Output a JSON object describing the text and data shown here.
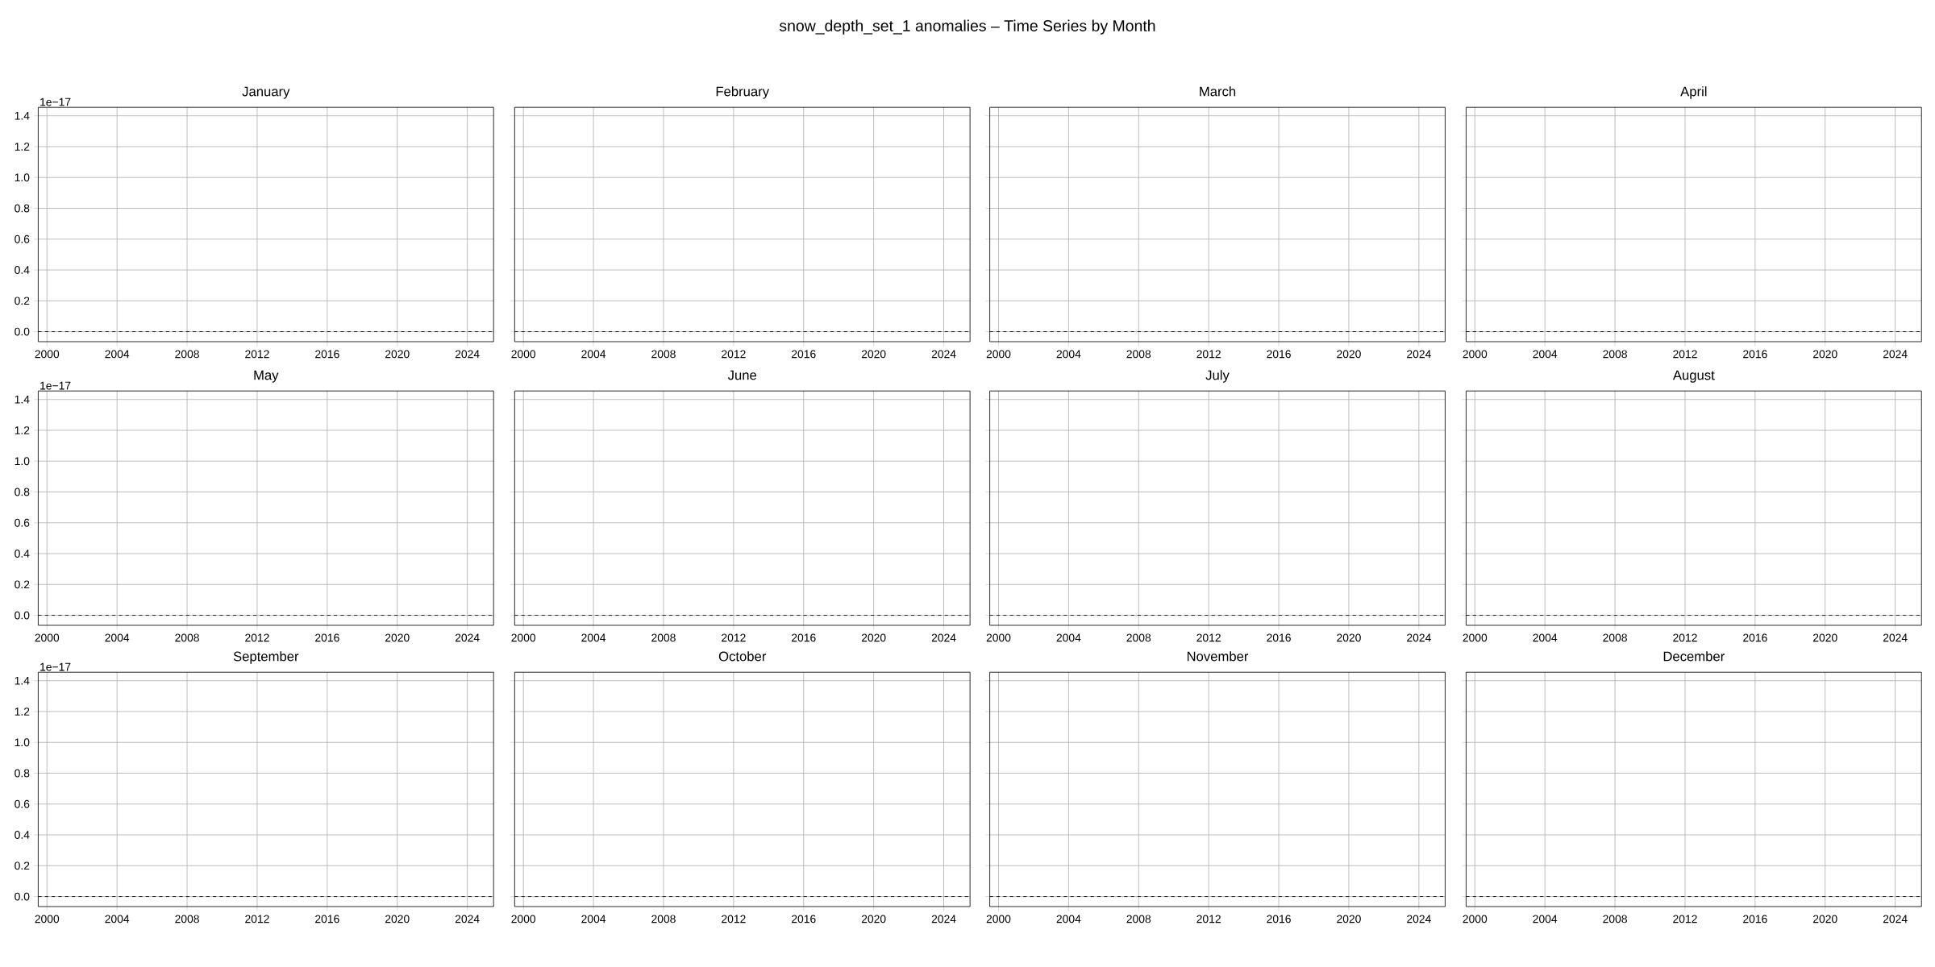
{
  "chart_data": [
    {
      "type": "line",
      "title": "January",
      "annotations": [
        "snow_depth_set_1 anomalies – Time Series by Month",
        "1e−17"
      ],
      "xlim": [
        1999.5,
        2025.5
      ],
      "xticks": [
        2000,
        2004,
        2008,
        2012,
        2016,
        2020,
        2024
      ],
      "ylim": [
        -0.065,
        1.455
      ],
      "yticks": [
        {
          "value": 0,
          "label": "0.0"
        },
        0.2,
        0.4,
        0.6,
        0.8,
        {
          "value": 1,
          "label": "1.0"
        },
        1.2,
        1.4
      ],
      "grid": true,
      "ref_lines": [
        {
          "axis": "y",
          "value": 0,
          "line_style": "dashed",
          "color": "#000000"
        }
      ]
    },
    {
      "type": "line",
      "title": "February",
      "xlim": [
        1999.5,
        2025.5
      ],
      "xticks": [
        2000,
        2004,
        2008,
        2012,
        2016,
        2020,
        2024
      ],
      "ylim": [
        -0.065,
        1.455
      ],
      "yticks": [
        {
          "value": 0,
          "label": null
        },
        {
          "value": 0.2,
          "label": null
        },
        {
          "value": 0.4,
          "label": null
        },
        {
          "value": 0.6,
          "label": null
        },
        {
          "value": 0.8,
          "label": null
        },
        {
          "value": 1,
          "label": null
        },
        {
          "value": 1.2,
          "label": null
        },
        {
          "value": 1.4,
          "label": null
        }
      ],
      "tick_labels": "x",
      "grid": true,
      "ref_lines": [
        {
          "axis": "y",
          "value": 0,
          "line_style": "dashed",
          "color": "#000000"
        }
      ]
    },
    {
      "type": "line",
      "title": "March",
      "xlim": [
        1999.5,
        2025.5
      ],
      "xticks": [
        2000,
        2004,
        2008,
        2012,
        2016,
        2020,
        2024
      ],
      "ylim": [
        -0.065,
        1.455
      ],
      "yticks": [
        {
          "value": 0,
          "label": null
        },
        {
          "value": 0.2,
          "label": null
        },
        {
          "value": 0.4,
          "label": null
        },
        {
          "value": 0.6,
          "label": null
        },
        {
          "value": 0.8,
          "label": null
        },
        {
          "value": 1,
          "label": null
        },
        {
          "value": 1.2,
          "label": null
        },
        {
          "value": 1.4,
          "label": null
        }
      ],
      "tick_labels": "x",
      "grid": true,
      "ref_lines": [
        {
          "axis": "y",
          "value": 0,
          "line_style": "dashed",
          "color": "#000000"
        }
      ]
    },
    {
      "type": "line",
      "title": "April",
      "xlim": [
        1999.5,
        2025.5
      ],
      "xticks": [
        2000,
        2004,
        2008,
        2012,
        2016,
        2020,
        2024
      ],
      "ylim": [
        -0.065,
        1.455
      ],
      "yticks": [
        {
          "value": 0,
          "label": null
        },
        {
          "value": 0.2,
          "label": null
        },
        {
          "value": 0.4,
          "label": null
        },
        {
          "value": 0.6,
          "label": null
        },
        {
          "value": 0.8,
          "label": null
        },
        {
          "value": 1,
          "label": null
        },
        {
          "value": 1.2,
          "label": null
        },
        {
          "value": 1.4,
          "label": null
        }
      ],
      "tick_labels": "x",
      "grid": true,
      "ref_lines": [
        {
          "axis": "y",
          "value": 0,
          "line_style": "dashed",
          "color": "#000000"
        }
      ]
    },
    {
      "type": "line",
      "title": "May",
      "annotations": [
        "1e−17"
      ],
      "xlim": [
        1999.5,
        2025.5
      ],
      "xticks": [
        2000,
        2004,
        2008,
        2012,
        2016,
        2020,
        2024
      ],
      "ylim": [
        -0.065,
        1.455
      ],
      "yticks": [
        {
          "value": 0,
          "label": "0.0"
        },
        0.2,
        0.4,
        0.6,
        0.8,
        {
          "value": 1,
          "label": "1.0"
        },
        1.2,
        1.4
      ],
      "grid": true,
      "ref_lines": [
        {
          "axis": "y",
          "value": 0,
          "line_style": "dashed",
          "color": "#000000"
        }
      ]
    },
    {
      "type": "line",
      "title": "June",
      "xlim": [
        1999.5,
        2025.5
      ],
      "xticks": [
        2000,
        2004,
        2008,
        2012,
        2016,
        2020,
        2024
      ],
      "ylim": [
        -0.065,
        1.455
      ],
      "yticks": [
        {
          "value": 0,
          "label": null
        },
        {
          "value": 0.2,
          "label": null
        },
        {
          "value": 0.4,
          "label": null
        },
        {
          "value": 0.6,
          "label": null
        },
        {
          "value": 0.8,
          "label": null
        },
        {
          "value": 1,
          "label": null
        },
        {
          "value": 1.2,
          "label": null
        },
        {
          "value": 1.4,
          "label": null
        }
      ],
      "tick_labels": "x",
      "grid": true,
      "ref_lines": [
        {
          "axis": "y",
          "value": 0,
          "line_style": "dashed",
          "color": "#000000"
        }
      ]
    },
    {
      "type": "line",
      "title": "July",
      "xlim": [
        1999.5,
        2025.5
      ],
      "xticks": [
        2000,
        2004,
        2008,
        2012,
        2016,
        2020,
        2024
      ],
      "ylim": [
        -0.065,
        1.455
      ],
      "yticks": [
        {
          "value": 0,
          "label": null
        },
        {
          "value": 0.2,
          "label": null
        },
        {
          "value": 0.4,
          "label": null
        },
        {
          "value": 0.6,
          "label": null
        },
        {
          "value": 0.8,
          "label": null
        },
        {
          "value": 1,
          "label": null
        },
        {
          "value": 1.2,
          "label": null
        },
        {
          "value": 1.4,
          "label": null
        }
      ],
      "tick_labels": "x",
      "grid": true,
      "ref_lines": [
        {
          "axis": "y",
          "value": 0,
          "line_style": "dashed",
          "color": "#000000"
        }
      ]
    },
    {
      "type": "line",
      "title": "August",
      "xlim": [
        1999.5,
        2025.5
      ],
      "xticks": [
        2000,
        2004,
        2008,
        2012,
        2016,
        2020,
        2024
      ],
      "ylim": [
        -0.065,
        1.455
      ],
      "yticks": [
        {
          "value": 0,
          "label": null
        },
        {
          "value": 0.2,
          "label": null
        },
        {
          "value": 0.4,
          "label": null
        },
        {
          "value": 0.6,
          "label": null
        },
        {
          "value": 0.8,
          "label": null
        },
        {
          "value": 1,
          "label": null
        },
        {
          "value": 1.2,
          "label": null
        },
        {
          "value": 1.4,
          "label": null
        }
      ],
      "tick_labels": "x",
      "grid": true,
      "ref_lines": [
        {
          "axis": "y",
          "value": 0,
          "line_style": "dashed",
          "color": "#000000"
        }
      ]
    },
    {
      "type": "line",
      "title": "September",
      "annotations": [
        "1e−17"
      ],
      "xlim": [
        1999.5,
        2025.5
      ],
      "xticks": [
        2000,
        2004,
        2008,
        2012,
        2016,
        2020,
        2024
      ],
      "ylim": [
        -0.065,
        1.455
      ],
      "yticks": [
        {
          "value": 0,
          "label": "0.0"
        },
        0.2,
        0.4,
        0.6,
        0.8,
        {
          "value": 1,
          "label": "1.0"
        },
        1.2,
        1.4
      ],
      "grid": true,
      "ref_lines": [
        {
          "axis": "y",
          "value": 0,
          "line_style": "dashed",
          "color": "#000000"
        }
      ]
    },
    {
      "type": "line",
      "title": "October",
      "xlim": [
        1999.5,
        2025.5
      ],
      "xticks": [
        2000,
        2004,
        2008,
        2012,
        2016,
        2020,
        2024
      ],
      "ylim": [
        -0.065,
        1.455
      ],
      "yticks": [
        {
          "value": 0,
          "label": null
        },
        {
          "value": 0.2,
          "label": null
        },
        {
          "value": 0.4,
          "label": null
        },
        {
          "value": 0.6,
          "label": null
        },
        {
          "value": 0.8,
          "label": null
        },
        {
          "value": 1,
          "label": null
        },
        {
          "value": 1.2,
          "label": null
        },
        {
          "value": 1.4,
          "label": null
        }
      ],
      "tick_labels": "x",
      "grid": true,
      "ref_lines": [
        {
          "axis": "y",
          "value": 0,
          "line_style": "dashed",
          "color": "#000000"
        }
      ]
    },
    {
      "type": "line",
      "title": "November",
      "xlim": [
        1999.5,
        2025.5
      ],
      "xticks": [
        2000,
        2004,
        2008,
        2012,
        2016,
        2020,
        2024
      ],
      "ylim": [
        -0.065,
        1.455
      ],
      "yticks": [
        {
          "value": 0,
          "label": null
        },
        {
          "value": 0.2,
          "label": null
        },
        {
          "value": 0.4,
          "label": null
        },
        {
          "value": 0.6,
          "label": null
        },
        {
          "value": 0.8,
          "label": null
        },
        {
          "value": 1,
          "label": null
        },
        {
          "value": 1.2,
          "label": null
        },
        {
          "value": 1.4,
          "label": null
        }
      ],
      "tick_labels": "x",
      "grid": true,
      "ref_lines": [
        {
          "axis": "y",
          "value": 0,
          "line_style": "dashed",
          "color": "#000000"
        }
      ]
    },
    {
      "type": "line",
      "title": "December",
      "xlim": [
        1999.5,
        2025.5
      ],
      "xticks": [
        2000,
        2004,
        2008,
        2012,
        2016,
        2020,
        2024
      ],
      "ylim": [
        -0.065,
        1.455
      ],
      "yticks": [
        {
          "value": 0,
          "label": null
        },
        {
          "value": 0.2,
          "label": null
        },
        {
          "value": 0.4,
          "label": null
        },
        {
          "value": 0.6,
          "label": null
        },
        {
          "value": 0.8,
          "label": null
        },
        {
          "value": 1,
          "label": null
        },
        {
          "value": 1.2,
          "label": null
        },
        {
          "value": 1.4,
          "label": null
        }
      ],
      "tick_labels": "x",
      "grid": true,
      "ref_lines": [
        {
          "axis": "y",
          "value": 0,
          "line_style": "dashed",
          "color": "#000000"
        }
      ]
    }
  ]
}
